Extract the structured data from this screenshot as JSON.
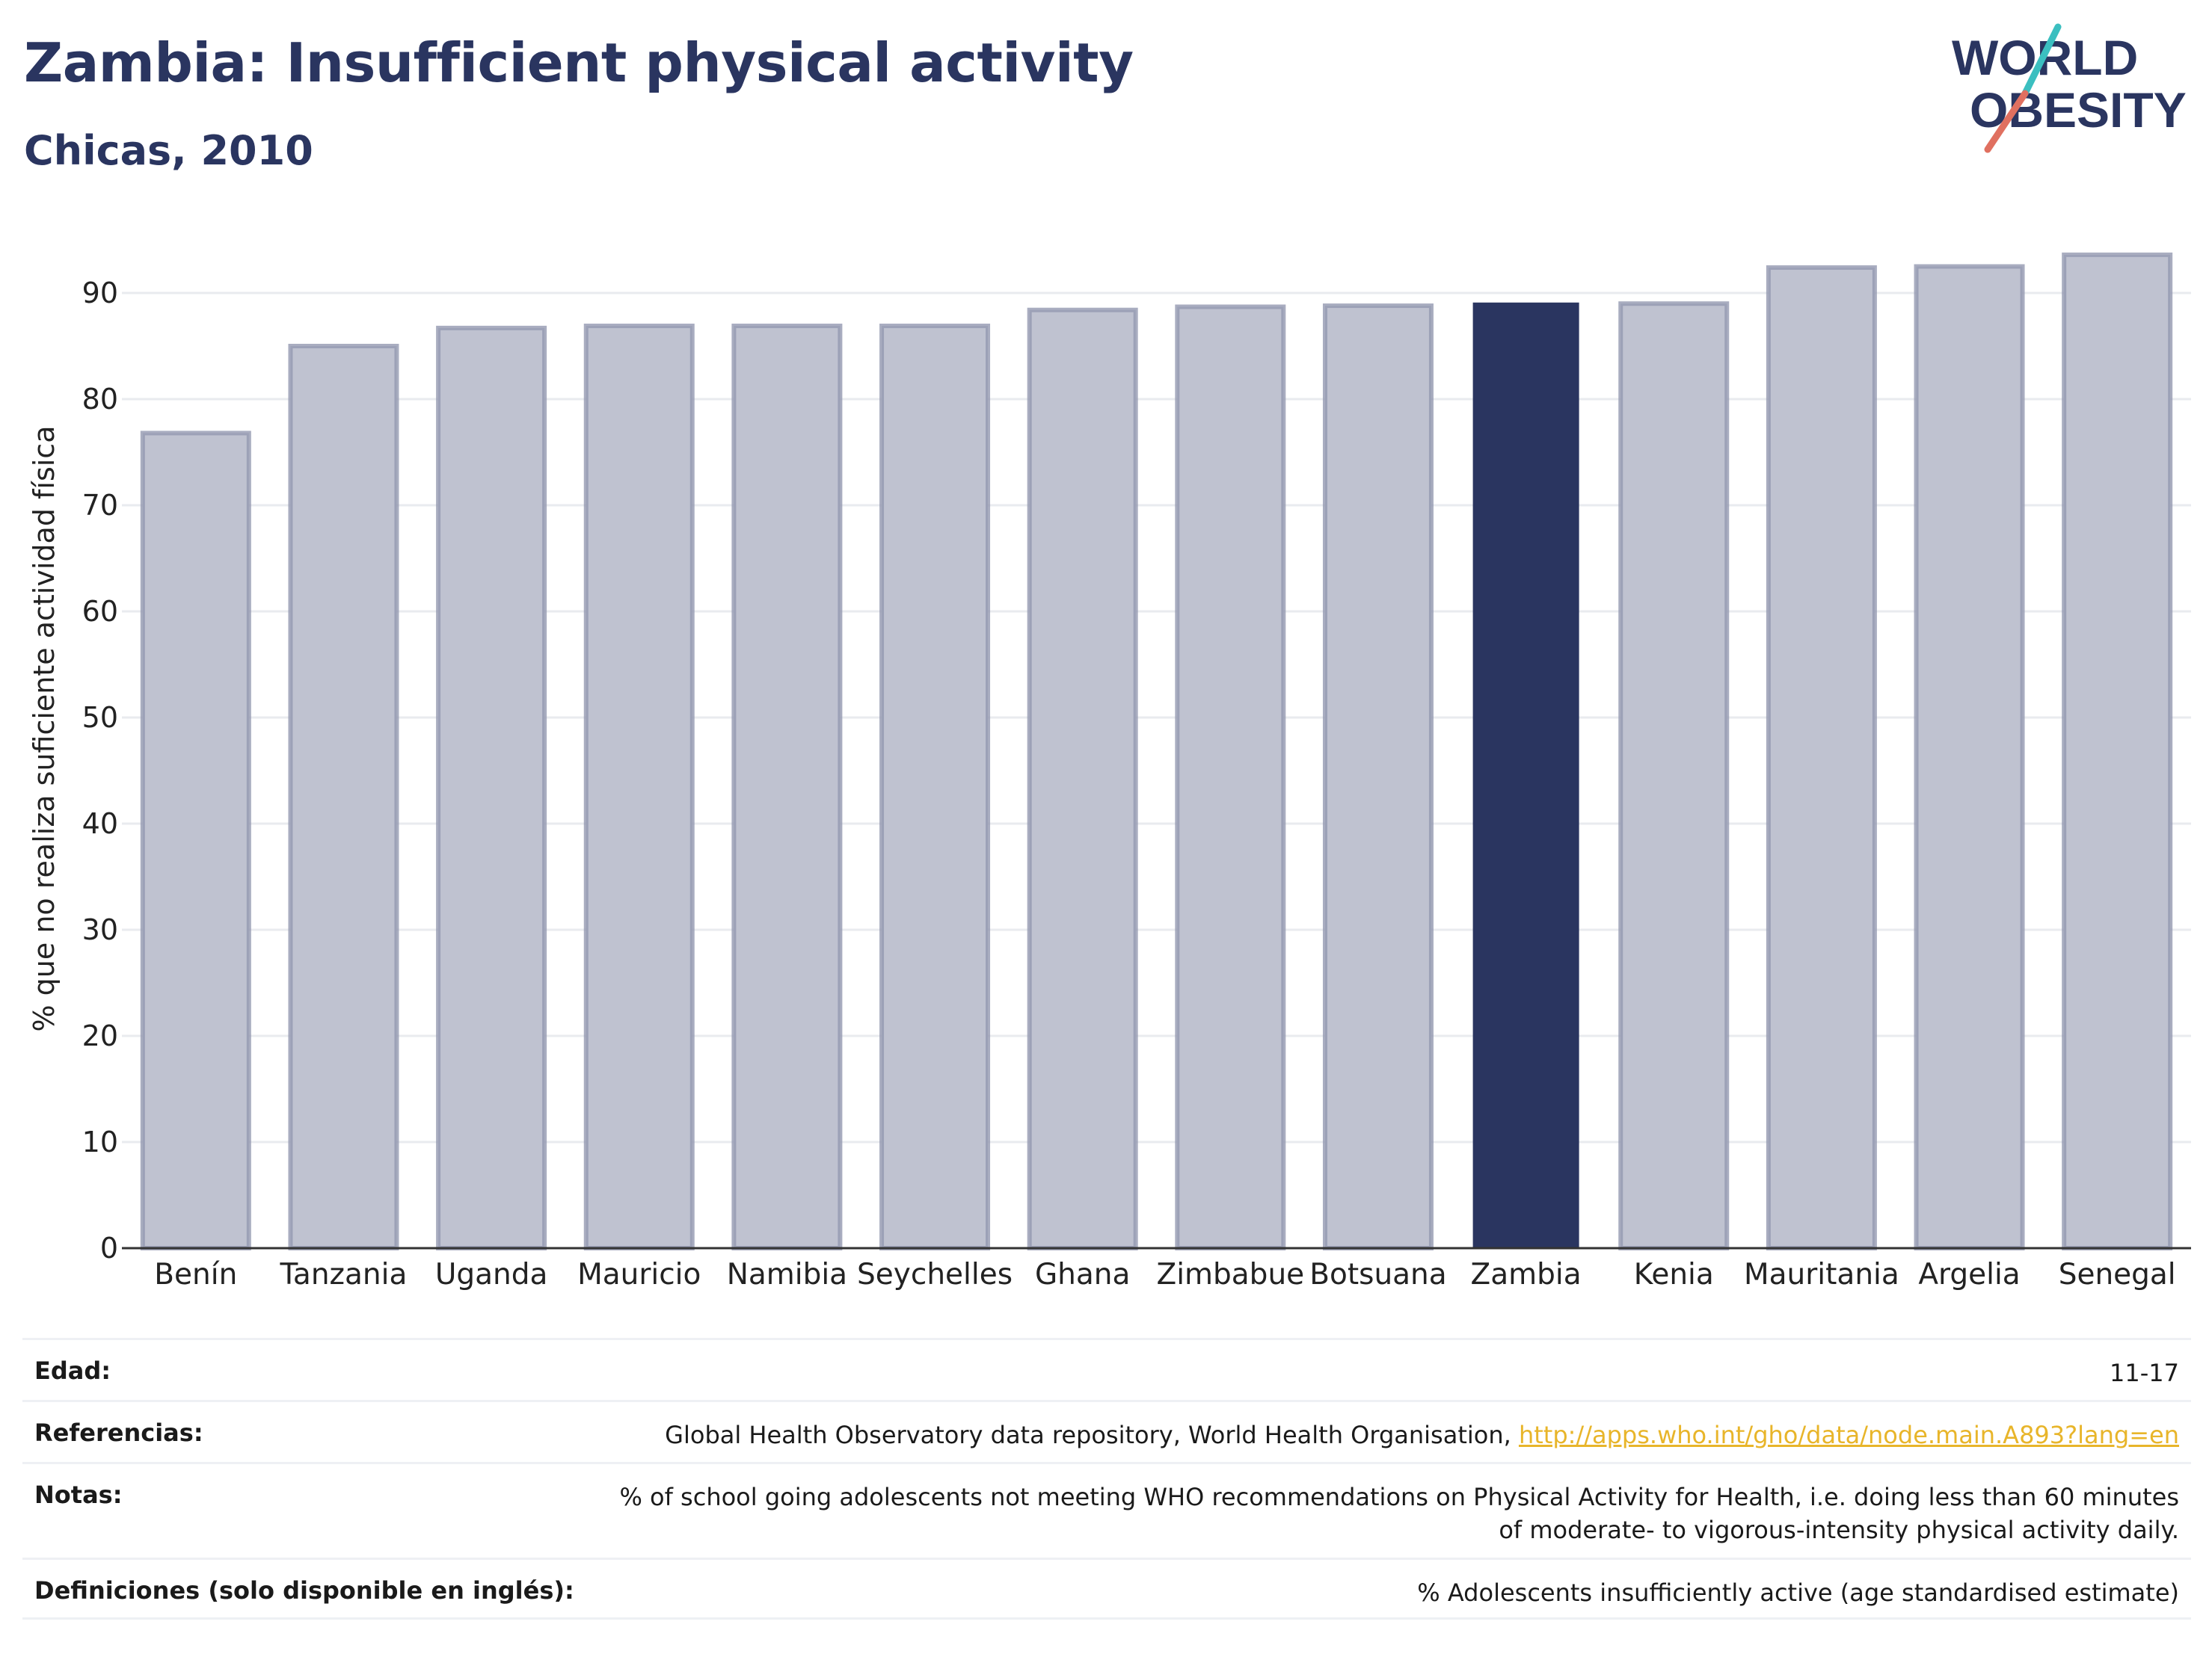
{
  "header": {
    "title": "Zambia: Insufficient physical activity",
    "subtitle": "Chicas, 2010"
  },
  "logo": {
    "line1": "WORLD",
    "line2": "OBESITY"
  },
  "colors": {
    "highlight": "#2a3560",
    "bar_fill": "#bfc2d0",
    "bar_stroke": "#9398b0",
    "accent_teal": "#3bbfc0",
    "accent_coral": "#e07060",
    "link": "#e8b52a"
  },
  "chart_data": {
    "type": "bar",
    "categories": [
      "Benín",
      "Tanzania",
      "Uganda",
      "Mauricio",
      "Namibia",
      "Seychelles",
      "Ghana",
      "Zimbabue",
      "Botsuana",
      "Zambia",
      "Kenia",
      "Mauritania",
      "Argelia",
      "Senegal"
    ],
    "values": [
      76.8,
      85.0,
      86.7,
      86.9,
      86.9,
      86.9,
      88.4,
      88.7,
      88.8,
      89.1,
      89.0,
      92.4,
      92.5,
      93.6
    ],
    "highlight": "Zambia",
    "ylabel": "% que no realiza suficiente actividad física",
    "xlabel": "",
    "ylim": [
      0,
      96
    ],
    "yticks": [
      0,
      10,
      20,
      30,
      40,
      50,
      60,
      70,
      80,
      90
    ],
    "grid": true
  },
  "meta": {
    "age_label": "Edad:",
    "age_value": "11-17",
    "refs_label": "Referencias:",
    "refs_text": "Global Health Observatory data repository, World Health Organisation,",
    "refs_link": "http://apps.who.int/gho/data/node.main.A893?lang=en",
    "notes_label": "Notas:",
    "notes_value": "% of school going adolescents not meeting WHO recommendations on Physical Activity for Health, i.e. doing less than 60 minutes of moderate- to vigorous-intensity physical activity daily.",
    "defs_label": "Definiciones (solo disponible en inglés):",
    "defs_value": "% Adolescents insufficiently active (age standardised estimate)"
  }
}
